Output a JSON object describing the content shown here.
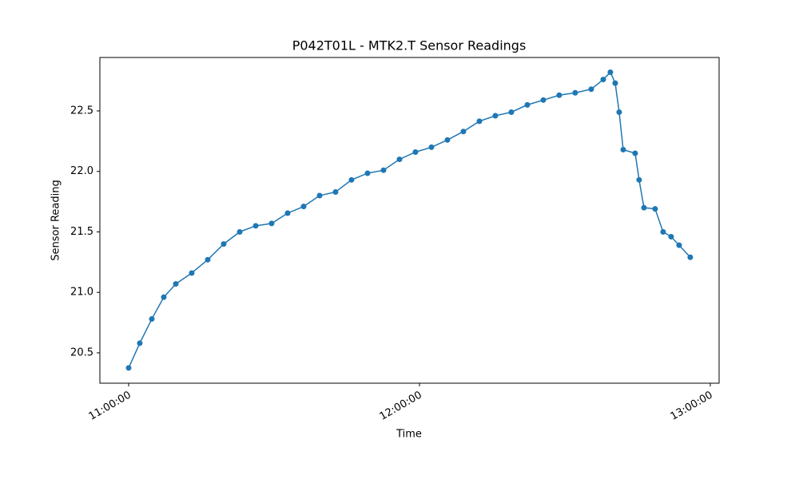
{
  "chart_data": {
    "type": "line",
    "title": "P042T01L - MTK2.T Sensor Readings",
    "x_label": "Time",
    "y_label": "Sensor Reading",
    "x": [
      "11:00:00",
      "11:02:18",
      "11:04:47",
      "11:07:15",
      "11:09:44",
      "11:13:01",
      "11:16:19",
      "11:19:37",
      "11:22:55",
      "11:26:13",
      "11:29:30",
      "11:32:48",
      "11:36:06",
      "11:39:24",
      "11:42:41",
      "11:45:59",
      "11:49:17",
      "11:52:35",
      "11:55:53",
      "11:59:10",
      "12:02:28",
      "12:05:46",
      "12:09:04",
      "12:12:22",
      "12:15:39",
      "12:18:57",
      "12:22:15",
      "12:25:33",
      "12:28:50",
      "12:32:08",
      "12:35:26",
      "12:37:55",
      "12:39:23",
      "12:40:23",
      "12:41:12",
      "12:42:02",
      "12:44:30",
      "12:45:19",
      "12:46:19",
      "12:48:37",
      "12:50:16",
      "12:51:55",
      "12:53:34",
      "12:55:52"
    ],
    "series": [
      {
        "name": "MTK2.T",
        "color": "#1f77b4",
        "values": [
          20.375,
          20.58,
          20.78,
          20.96,
          21.07,
          21.16,
          21.27,
          21.4,
          21.5,
          21.55,
          21.57,
          21.655,
          21.71,
          21.8,
          21.83,
          21.93,
          21.985,
          22.01,
          22.1,
          22.16,
          22.2,
          22.26,
          22.33,
          22.415,
          22.46,
          22.49,
          22.55,
          22.59,
          22.63,
          22.65,
          22.68,
          22.76,
          22.82,
          22.73,
          22.49,
          22.18,
          22.15,
          21.93,
          21.7,
          21.69,
          21.5,
          21.46,
          21.39,
          21.29
        ]
      }
    ],
    "xlim": [
      "10:54:04",
      "13:01:49"
    ],
    "xticks": [
      "11:00:00",
      "12:00:00",
      "13:00:00"
    ],
    "ylim": [
      20.249,
      22.942
    ],
    "yticks": [
      20.5,
      {
        "value": 21.0,
        "label": "21.0"
      },
      21.5,
      {
        "value": 22.0,
        "label": "22.0"
      },
      22.5
    ]
  }
}
